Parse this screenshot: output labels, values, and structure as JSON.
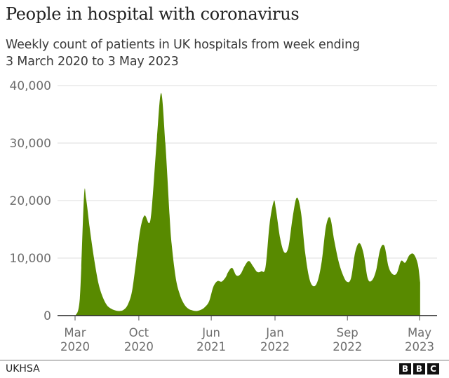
{
  "header": {
    "title": "People in hospital with coronavirus",
    "subtitle_line1": "Weekly count of patients in UK hospitals from week ending",
    "subtitle_line2": "3 March 2020 to 3 May 2023"
  },
  "footer": {
    "source": "UKHSA",
    "logo": [
      "B",
      "B",
      "C"
    ]
  },
  "colors": {
    "area": "#588a00",
    "grid": "#dcdcdc",
    "axis": "#222222",
    "text": "#6e6e6e"
  },
  "chart_data": {
    "type": "area",
    "title": "People in hospital with coronavirus",
    "subtitle": "Weekly count of patients in UK hospitals from week ending 3 March 2020 to 3 May 2023",
    "xlabel": "",
    "ylabel": "",
    "ylim": [
      0,
      40000
    ],
    "yticks": [
      0,
      10000,
      20000,
      30000,
      40000
    ],
    "ytick_labels": [
      "0",
      "10,000",
      "20,000",
      "30,000",
      "40,000"
    ],
    "xticks": [
      {
        "label1": "Mar",
        "label2": "2020",
        "date": "2020-03"
      },
      {
        "label1": "Oct",
        "label2": "2020",
        "date": "2020-10"
      },
      {
        "label1": "Jun",
        "label2": "2021",
        "date": "2021-06"
      },
      {
        "label1": "Jan",
        "label2": "2022",
        "date": "2022-01"
      },
      {
        "label1": "Sep",
        "label2": "2022",
        "date": "2022-09"
      },
      {
        "label1": "May",
        "label2": "2023",
        "date": "2023-05"
      }
    ],
    "grid": true,
    "legend": null,
    "source": "UKHSA",
    "x": [
      "2020-03-03",
      "2020-03-17",
      "2020-03-31",
      "2020-04-07",
      "2020-04-21",
      "2020-05-05",
      "2020-05-19",
      "2020-06-02",
      "2020-06-16",
      "2020-06-30",
      "2020-07-14",
      "2020-07-28",
      "2020-08-11",
      "2020-08-25",
      "2020-09-08",
      "2020-09-22",
      "2020-10-06",
      "2020-10-20",
      "2020-11-03",
      "2020-11-10",
      "2020-11-17",
      "2020-12-01",
      "2020-12-15",
      "2020-12-29",
      "2021-01-12",
      "2021-01-19",
      "2021-02-02",
      "2021-02-16",
      "2021-03-02",
      "2021-03-16",
      "2021-03-30",
      "2021-04-13",
      "2021-04-27",
      "2021-05-11",
      "2021-05-25",
      "2021-06-08",
      "2021-06-22",
      "2021-07-06",
      "2021-07-20",
      "2021-07-27",
      "2021-08-10",
      "2021-08-24",
      "2021-09-07",
      "2021-09-21",
      "2021-10-05",
      "2021-10-19",
      "2021-11-02",
      "2021-11-16",
      "2021-11-30",
      "2021-12-14",
      "2021-12-28",
      "2022-01-04",
      "2022-01-18",
      "2022-02-01",
      "2022-02-15",
      "2022-03-01",
      "2022-03-15",
      "2022-03-29",
      "2022-04-12",
      "2022-04-26",
      "2022-05-10",
      "2022-05-24",
      "2022-06-07",
      "2022-06-21",
      "2022-07-05",
      "2022-07-19",
      "2022-08-02",
      "2022-08-16",
      "2022-08-30",
      "2022-09-13",
      "2022-09-27",
      "2022-10-11",
      "2022-10-25",
      "2022-11-08",
      "2022-11-22",
      "2022-12-06",
      "2022-12-20",
      "2023-01-03",
      "2023-01-17",
      "2023-01-31",
      "2023-02-14",
      "2023-02-28",
      "2023-03-14",
      "2023-03-28",
      "2023-04-11",
      "2023-04-25",
      "2023-05-03"
    ],
    "values": [
      0,
      3000,
      20700,
      20300,
      14500,
      9500,
      5500,
      3200,
      1800,
      1200,
      900,
      800,
      1000,
      1900,
      4200,
      9500,
      15000,
      17400,
      16100,
      17000,
      21000,
      31000,
      38700,
      30000,
      17500,
      12500,
      6500,
      3600,
      2000,
      1200,
      900,
      800,
      1000,
      1500,
      2500,
      5000,
      6000,
      5900,
      6700,
      7500,
      8300,
      7000,
      7200,
      8600,
      9500,
      8600,
      7600,
      7700,
      8400,
      16000,
      19900,
      18500,
      13500,
      11000,
      11900,
      17000,
      20500,
      18000,
      11000,
      6500,
      5100,
      6000,
      9500,
      15500,
      17000,
      13000,
      9500,
      7200,
      5900,
      6500,
      11000,
      12600,
      10800,
      6500,
      6100,
      7800,
      11500,
      12100,
      8500,
      7200,
      7400,
      9500,
      9200,
      10500,
      10700,
      9000,
      5800
    ]
  }
}
